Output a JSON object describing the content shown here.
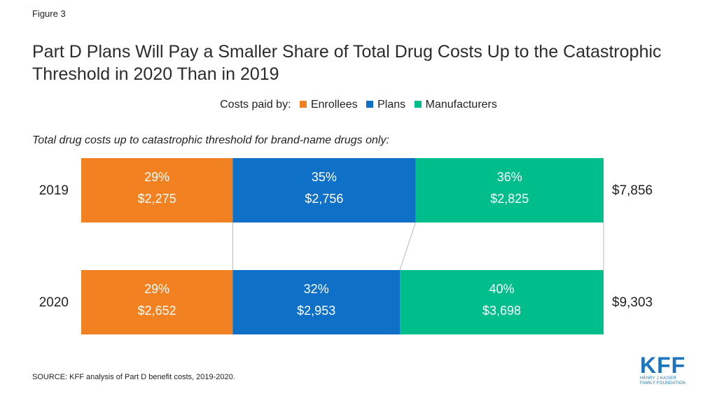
{
  "figure_label": "Figure 3",
  "title": "Part D Plans Will Pay a Smaller Share of Total Drug Costs Up to the Catastrophic Threshold in 2020 Than in 2019",
  "legend_prefix": "Costs paid by:",
  "subtitle": "Total drug costs up to catastrophic threshold for brand-name drugs only:",
  "source": "SOURCE: KFF analysis of Part D benefit costs, 2019-2020.",
  "logo": {
    "name": "KFF",
    "subtext_line1": "HENRY J KAISER",
    "subtext_line2": "FAMILY FOUNDATION"
  },
  "colors": {
    "Enrollees": "#f28121",
    "Plans": "#0f70c7",
    "Manufacturers": "#00be8c"
  },
  "chart_data": {
    "type": "bar",
    "orientation": "horizontal",
    "stacked": true,
    "normalized_percent": true,
    "categories": [
      "2019",
      "2020"
    ],
    "series": [
      {
        "name": "Enrollees",
        "percent": [
          29,
          29
        ],
        "values": [
          2275,
          2652
        ],
        "labels_pct": [
          "29%",
          "29%"
        ],
        "labels_val": [
          "$2,275",
          "$2,652"
        ]
      },
      {
        "name": "Plans",
        "percent": [
          35,
          32
        ],
        "values": [
          2756,
          2953
        ],
        "labels_pct": [
          "35%",
          "32%"
        ],
        "labels_val": [
          "$2,756",
          "$2,953"
        ]
      },
      {
        "name": "Manufacturers",
        "percent": [
          36,
          40
        ],
        "values": [
          2825,
          3698
        ],
        "labels_pct": [
          "36%",
          "40%"
        ],
        "labels_val": [
          "$2,825",
          "$3,698"
        ]
      }
    ],
    "totals": [
      7856,
      9303
    ],
    "total_labels": [
      "$7,856",
      "$9,303"
    ],
    "legend_position": "top-center",
    "grid": false
  }
}
